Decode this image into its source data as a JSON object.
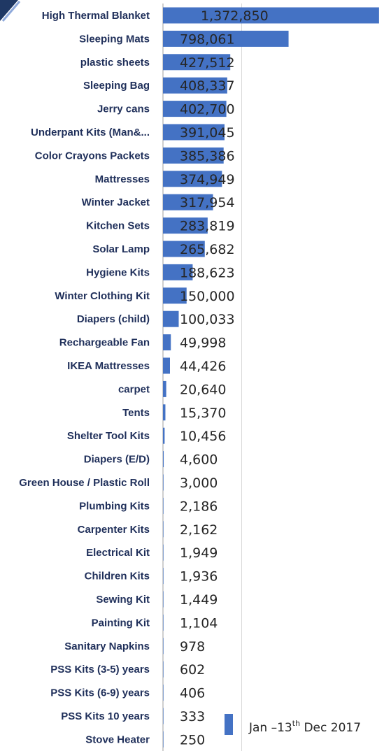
{
  "chart_data": {
    "type": "bar",
    "orientation": "horizontal",
    "categories": [
      "High Thermal Blanket",
      "Sleeping Mats",
      "plastic sheets",
      "Sleeping Bag",
      "Jerry cans",
      "Underpant Kits (Man&...",
      "Color Crayons Packets",
      "Mattresses",
      "Winter Jacket",
      "Kitchen Sets",
      "Solar Lamp",
      "Hygiene Kits",
      "Winter Clothing Kit",
      "Diapers (child)",
      "Rechargeable Fan",
      "IKEA Mattresses",
      "carpet",
      "Tents",
      "Shelter Tool Kits",
      "Diapers (E/D)",
      "Green House / Plastic Roll",
      "Plumbing Kits",
      "Carpenter Kits",
      "Electrical  Kit",
      "Children Kits",
      "Sewing Kit",
      "Painting Kit",
      "Sanitary Napkins",
      "PSS Kits (3-5) years",
      "PSS Kits (6-9) years",
      "PSS Kits 10 years",
      "Stove Heater"
    ],
    "values": [
      1372850,
      798061,
      427512,
      408337,
      402700,
      391045,
      385386,
      374949,
      317954,
      283819,
      265682,
      188623,
      150000,
      100033,
      49998,
      44426,
      20640,
      15370,
      10456,
      4600,
      3000,
      2186,
      2162,
      1949,
      1936,
      1449,
      1104,
      978,
      602,
      406,
      333,
      250
    ],
    "value_labels": [
      "1,372,850",
      "798,061",
      "427,512",
      "408,337",
      "402,700",
      "391,045",
      "385,386",
      "374,949",
      "317,954",
      "283,819",
      "265,682",
      "188,623",
      "150,000",
      "100,033",
      "49,998",
      "44,426",
      "20,640",
      "15,370",
      "10,456",
      "4,600",
      "3,000",
      "2,186",
      "2,162",
      "1,949",
      "1,936",
      "1,449",
      "1,104",
      "978",
      "602",
      "406",
      "333",
      "250"
    ],
    "series": [
      {
        "name": "Jan –13th  Dec 2017",
        "color": "#4472c4"
      }
    ],
    "legend": {
      "text_before": "Jan –13",
      "superscript": "th",
      "text_after": "  Dec 2017",
      "placement": "bottom-right"
    },
    "xlim": [
      0,
      1400000
    ],
    "grid": true,
    "colors": {
      "bar": "#4472c4",
      "grid": "#d9d9d9",
      "axis": "#bfbfbf",
      "label": "#1f2f5a"
    }
  }
}
